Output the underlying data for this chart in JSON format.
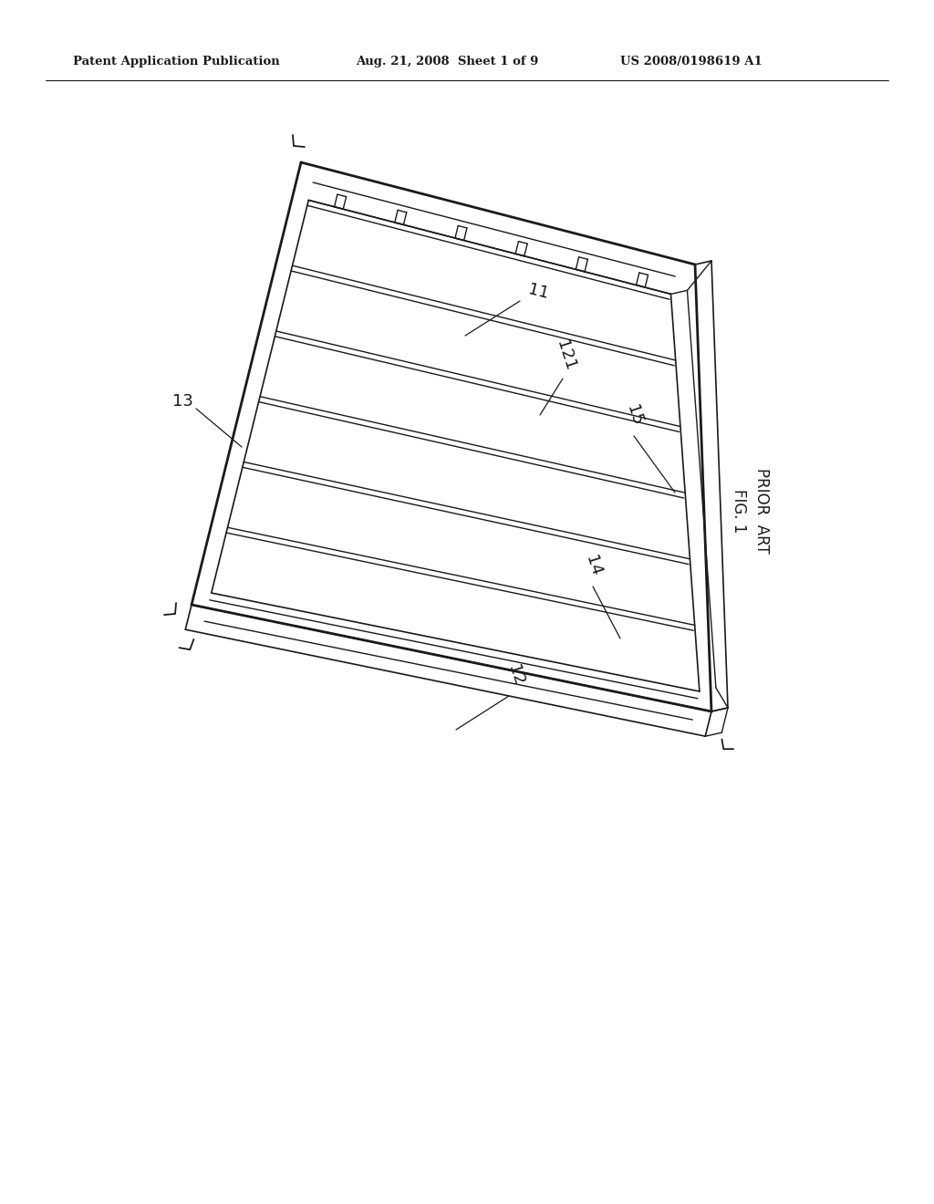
{
  "bg_color": "#ffffff",
  "line_color": "#1a1a1a",
  "header_left": "Patent Application Publication",
  "header_mid": "Aug. 21, 2008  Sheet 1 of 9",
  "header_right": "US 2008/0198619 A1",
  "fig_label": "FIG. 1",
  "fig_sublabel": "PRIOR ART",
  "n_tubes": 6,
  "lw_outer": 2.0,
  "lw_inner": 1.2,
  "lw_tube": 1.0,
  "lw_label": 0.9,
  "font_size_label": 13,
  "font_size_header": 9.5
}
